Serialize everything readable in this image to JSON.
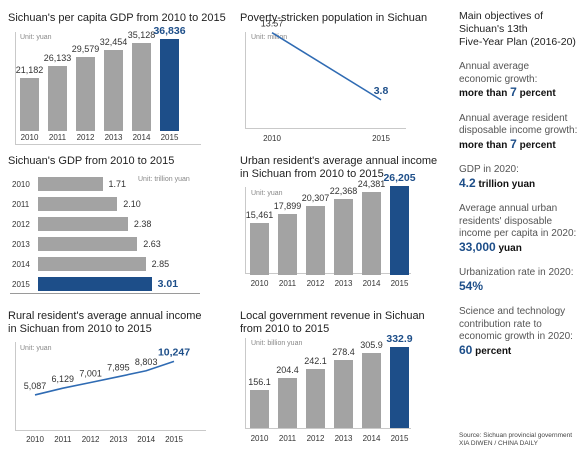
{
  "panels": {
    "gdp_per_capita": {
      "title": "Sichuan's per capita GDP from 2010 to 2015",
      "unit": "Unit: yuan"
    },
    "poverty": {
      "title": "Poverty-stricken population in Sichuan",
      "unit": "Unit: million"
    },
    "gdp": {
      "title": "Sichuan's GDP from 2010 to 2015",
      "unit": "Unit: trillion yuan"
    },
    "urban_income": {
      "title_line1": "Urban resident's average annual income",
      "title_line2": "in Sichuan from 2010 to 2015",
      "unit": "Unit: yuan"
    },
    "rural_income": {
      "title_line1": "Rural resident's average annual income",
      "title_line2": "in Sichuan from 2010 to 2015",
      "unit": "Unit: yuan"
    },
    "local_revenue": {
      "title_line1": "Local government revenue in Sichuan",
      "title_line2": "from 2010 to 2015",
      "unit": "Unit: billion yuan"
    }
  },
  "chart_data": [
    {
      "id": "gdp_per_capita",
      "type": "bar",
      "title": "Sichuan's per capita GDP from 2010 to 2015",
      "categories": [
        "2010",
        "2011",
        "2012",
        "2013",
        "2014",
        "2015"
      ],
      "values": [
        21182,
        26133,
        29579,
        32454,
        35128,
        36836
      ],
      "labels": [
        "21,182",
        "26,133",
        "29,579",
        "32,454",
        "35,128",
        "36,836"
      ],
      "ylim": [
        0,
        40000
      ],
      "highlight_color": "#1d4e89",
      "bar_color": "#a3a3a3"
    },
    {
      "id": "poverty",
      "type": "line",
      "title": "Poverty-stricken population in Sichuan",
      "categories": [
        "2010",
        "2015"
      ],
      "values": [
        13.57,
        3.8
      ],
      "labels": [
        "13.57",
        "3.8"
      ],
      "ylim": [
        0,
        16
      ],
      "line_color": "#2f6bb3"
    },
    {
      "id": "gdp",
      "type": "bar",
      "orientation": "horizontal",
      "title": "Sichuan's GDP from 2010 to 2015",
      "categories": [
        "2010",
        "2011",
        "2012",
        "2013",
        "2014",
        "2015"
      ],
      "values": [
        1.71,
        2.1,
        2.38,
        2.63,
        2.85,
        3.01
      ],
      "labels": [
        "1.71",
        "2.10",
        "2.38",
        "2.63",
        "2.85",
        "3.01"
      ],
      "xlim": [
        0,
        3.1
      ],
      "highlight_color": "#1d4e89",
      "bar_color": "#a3a3a3"
    },
    {
      "id": "urban_income",
      "type": "bar",
      "title": "Urban resident's average annual income in Sichuan from 2010 to 2015",
      "categories": [
        "2010",
        "2011",
        "2012",
        "2013",
        "2014",
        "2015"
      ],
      "values": [
        15461,
        17899,
        20307,
        22368,
        24381,
        26205
      ],
      "labels": [
        "15,461",
        "17,899",
        "20,307",
        "22,368",
        "24,381",
        "26,205"
      ],
      "ylim": [
        0,
        28000
      ],
      "highlight_color": "#1d4e89",
      "bar_color": "#a3a3a3"
    },
    {
      "id": "rural_income",
      "type": "line",
      "title": "Rural resident's average annual income in Sichuan from 2010 to 2015",
      "categories": [
        "2010",
        "2011",
        "2012",
        "2013",
        "2014",
        "2015"
      ],
      "values": [
        5087,
        6129,
        7001,
        7895,
        8803,
        10247
      ],
      "labels": [
        "5,087",
        "6,129",
        "7,001",
        "7,895",
        "8,803",
        "10,247"
      ],
      "ylim": [
        0,
        12000
      ],
      "line_color": "#2f6bb3"
    },
    {
      "id": "local_revenue",
      "type": "bar",
      "title": "Local government revenue in Sichuan from 2010 to 2015",
      "categories": [
        "2010",
        "2011",
        "2012",
        "2013",
        "2014",
        "2015"
      ],
      "values": [
        156.1,
        204.4,
        242.1,
        278.4,
        305.9,
        332.9
      ],
      "labels": [
        "156.1",
        "204.4",
        "242.1",
        "278.4",
        "305.9",
        "332.9"
      ],
      "ylim": [
        0,
        340
      ],
      "highlight_color": "#1d4e89",
      "bar_color": "#a3a3a3"
    }
  ],
  "objectives": {
    "heading_lines": [
      "Main objectives of",
      "Sichuan's 13th",
      "Five-Year Plan (2016-20)"
    ],
    "items": [
      {
        "label_lines": [
          "Annual average",
          "economic growth:"
        ],
        "value_a": "more than ",
        "value_b": "7",
        "value_c": " percent"
      },
      {
        "label_lines": [
          "Annual average resident",
          "disposable income growth:"
        ],
        "value_a": "more than ",
        "value_b": "7",
        "value_c": " percent"
      },
      {
        "label_lines": [
          "GDP in 2020:"
        ],
        "value_a": "",
        "value_b": "4.2",
        "value_c": " trillion yuan"
      },
      {
        "label_lines": [
          "Average annual urban",
          "residents' disposable",
          "income per capita in 2020:"
        ],
        "value_a": "",
        "value_b": "33,000",
        "value_c": " yuan"
      },
      {
        "label_lines": [
          "Urbanization rate in 2020:"
        ],
        "value_a": "",
        "value_b": "54%",
        "value_c": ""
      },
      {
        "label_lines": [
          "Science and technology",
          "contribution rate to",
          "economic growth in 2020:"
        ],
        "value_a": "",
        "value_b": "60",
        "value_c": " percent"
      }
    ]
  },
  "source": {
    "line1": "Source: Sichuan provincial government",
    "line2": "XIA DIWEN / CHINA DAILY"
  }
}
